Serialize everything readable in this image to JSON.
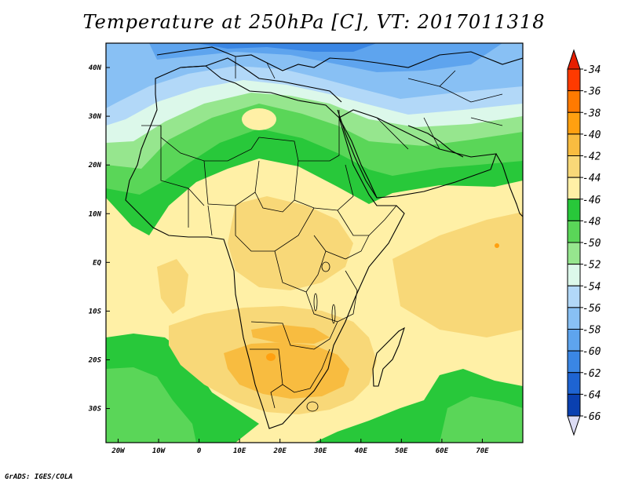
{
  "title": "Temperature at 250hPa [C], VT: 2017011318",
  "footer": "GrADS: IGES/COLA",
  "map": {
    "lon_range": [
      -23,
      80
    ],
    "lat_range": [
      -37,
      45
    ],
    "lat_labels": [
      {
        "lat": 40,
        "text": "40N"
      },
      {
        "lat": 30,
        "text": "30N"
      },
      {
        "lat": 20,
        "text": "20N"
      },
      {
        "lat": 10,
        "text": "10N"
      },
      {
        "lat": 0,
        "text": "EQ"
      },
      {
        "lat": -10,
        "text": "10S"
      },
      {
        "lat": -20,
        "text": "20S"
      },
      {
        "lat": -30,
        "text": "30S"
      }
    ],
    "lon_labels": [
      {
        "lon": -20,
        "text": "20W"
      },
      {
        "lon": -10,
        "text": "10W"
      },
      {
        "lon": 0,
        "text": "0"
      },
      {
        "lon": 10,
        "text": "10E"
      },
      {
        "lon": 20,
        "text": "20E"
      },
      {
        "lon": 30,
        "text": "30E"
      },
      {
        "lon": 40,
        "text": "40E"
      },
      {
        "lon": 50,
        "text": "50E"
      },
      {
        "lon": 60,
        "text": "60E"
      },
      {
        "lon": 70,
        "text": "70E"
      }
    ]
  },
  "colorbar": {
    "labels": [
      "-34",
      "-36",
      "-38",
      "-40",
      "-42",
      "-44",
      "-46",
      "-48",
      "-50",
      "-52",
      "-54",
      "-56",
      "-58",
      "-60",
      "-62",
      "-64",
      "-66"
    ],
    "colors": [
      "#ff3a00",
      "#ff7a00",
      "#ffa010",
      "#f8bc40",
      "#f8d878",
      "#fff0a6",
      "#28c83a",
      "#5ad658",
      "#96e68e",
      "#dcf8ea",
      "#b2d8f8",
      "#88c0f4",
      "#5ea4ee",
      "#3a86e4",
      "#1e64d2",
      "#0a40b0",
      "#061a7a"
    ],
    "top_arrow_color": "#e61e00",
    "bottom_arrow_color": "#dcdcf4"
  }
}
